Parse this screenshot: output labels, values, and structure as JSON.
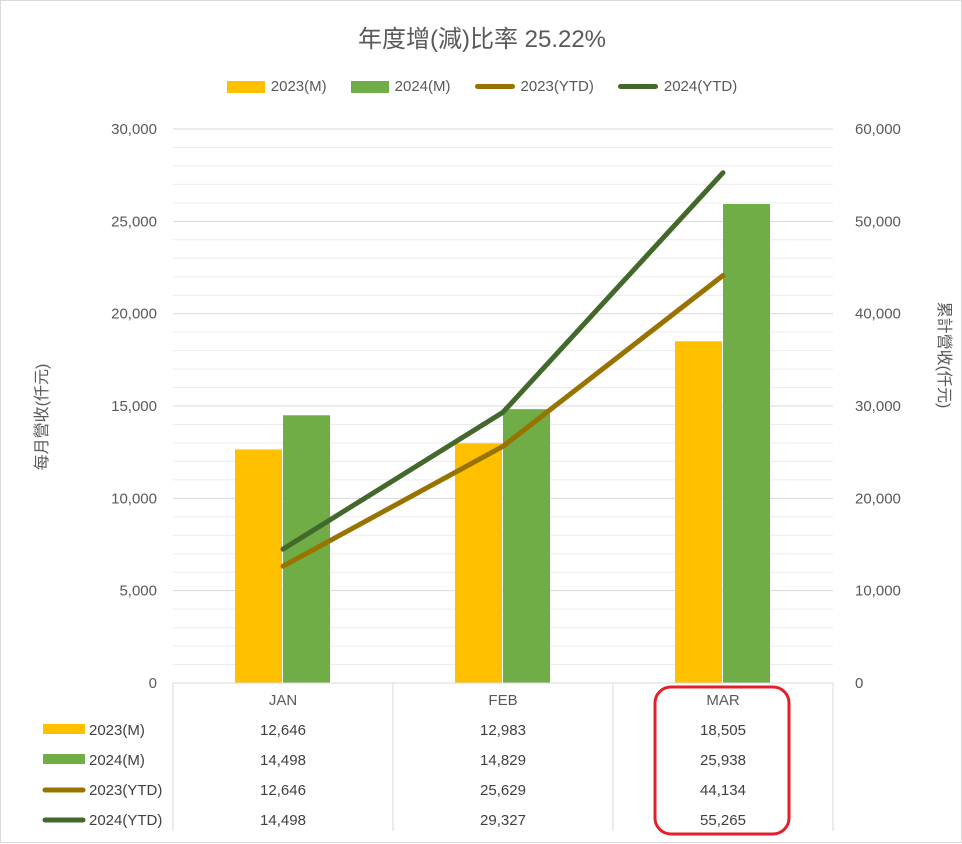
{
  "chart_data": {
    "type": "bar",
    "title": "年度增(減)比率 25.22%",
    "categories": [
      "JAN",
      "FEB",
      "MAR"
    ],
    "ylabel": "每月營收(仟元)",
    "y2label": "累計營收(仟元)",
    "ylim": [
      0,
      30000
    ],
    "y2lim": [
      0,
      60000
    ],
    "yticks": [
      "0",
      "5,000",
      "10,000",
      "15,000",
      "20,000",
      "25,000",
      "30,000"
    ],
    "y2ticks": [
      "0",
      "10,000",
      "20,000",
      "30,000",
      "40,000",
      "50,000",
      "60,000"
    ],
    "grid": true,
    "legend_position": "top",
    "series": [
      {
        "name": "2023(M)",
        "kind": "bar",
        "axis": "left",
        "color": "#ffc000",
        "values": [
          12646,
          12983,
          18505
        ]
      },
      {
        "name": "2024(M)",
        "kind": "bar",
        "axis": "left",
        "color": "#70ad47",
        "values": [
          14498,
          14829,
          25938
        ]
      },
      {
        "name": "2023(YTD)",
        "kind": "line",
        "axis": "right",
        "color": "#997300",
        "values": [
          12646,
          25629,
          44134
        ]
      },
      {
        "name": "2024(YTD)",
        "kind": "line",
        "axis": "right",
        "color": "#43682b",
        "values": [
          14498,
          29327,
          55265
        ]
      }
    ],
    "data_table": {
      "rows": [
        {
          "label": "2023(M)",
          "cells": [
            "12,646",
            "12,983",
            "18,505"
          ]
        },
        {
          "label": "2024(M)",
          "cells": [
            "14,498",
            "14,829",
            "25,938"
          ]
        },
        {
          "label": "2023(YTD)",
          "cells": [
            "12,646",
            "25,629",
            "44,134"
          ]
        },
        {
          "label": "2024(YTD)",
          "cells": [
            "14,498",
            "29,327",
            "55,265"
          ]
        }
      ]
    },
    "highlight": {
      "category": "MAR",
      "color": "#e0202a"
    }
  }
}
